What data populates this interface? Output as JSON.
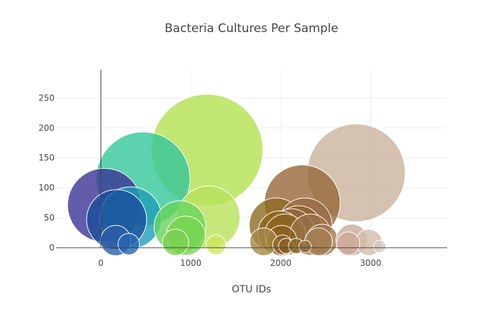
{
  "chart_data": {
    "type": "scatter",
    "title": "Bacteria Cultures Per Sample",
    "xlabel": "OTU IDs",
    "ylabel": "",
    "xlim": [
      -500,
      3850
    ],
    "ylim": [
      0,
      297
    ],
    "x_ticks": [
      0,
      1000,
      2000,
      3000
    ],
    "x_tick_labels": [
      "0",
      "1000",
      "2000",
      "3000"
    ],
    "y_ticks": [
      0,
      50,
      100,
      150,
      200,
      250
    ],
    "y_tick_labels": [
      "0",
      "50",
      "100",
      "150",
      "200",
      "250"
    ],
    "grid": true,
    "legend": "none",
    "marker_size_encodes": "y value",
    "color_encodes": "OTU ID (Earth colorscale)",
    "colors": {
      "grid": "#eeeeee",
      "axis_line": "#444444",
      "marker_outline": "#ffffff"
    },
    "series": [
      {
        "x": [
          40,
          175,
          330,
          470,
          880,
          945,
          1180,
          1200,
          1280,
          165,
          310,
          830,
          1810,
          1950,
          1990,
          2010,
          2050,
          2120,
          2200,
          2240,
          2270,
          2330,
          2460,
          2840,
          2790,
          2980,
          2750,
          3100,
          2420,
          2060,
          2170,
          2270,
          2020
        ],
        "y": [
          71,
          47,
          50,
          115,
          35,
          20,
          163,
          51,
          5,
          12,
          6,
          9,
          10,
          38,
          25,
          12,
          22,
          27,
          30,
          75,
          38,
          22,
          13,
          125,
          13,
          9,
          7,
          2,
          10,
          3,
          3,
          2,
          5
        ],
        "color": [
          "#3a3596",
          "#1c4f9c",
          "#1e9fb6",
          "#34c79b",
          "#68d35a",
          "#78d64f",
          "#b3e150",
          "#b8e25a",
          "#cfe65c",
          "#2c5ea8",
          "#2466b3",
          "#79d253",
          "#a48a45",
          "#8e6a22",
          "#8c641c",
          "#8a611e",
          "#8f6520",
          "#93683c",
          "#8d6328",
          "#97683a",
          "#9a6c42",
          "#9a7247",
          "#a4794f",
          "#cab39d",
          "#c9ab96",
          "#d2bdab",
          "#cda895",
          "#d9c9ba",
          "#a57e54",
          "#8a621f",
          "#8f6628",
          "#93693a",
          "#8c6224"
        ]
      }
    ]
  }
}
